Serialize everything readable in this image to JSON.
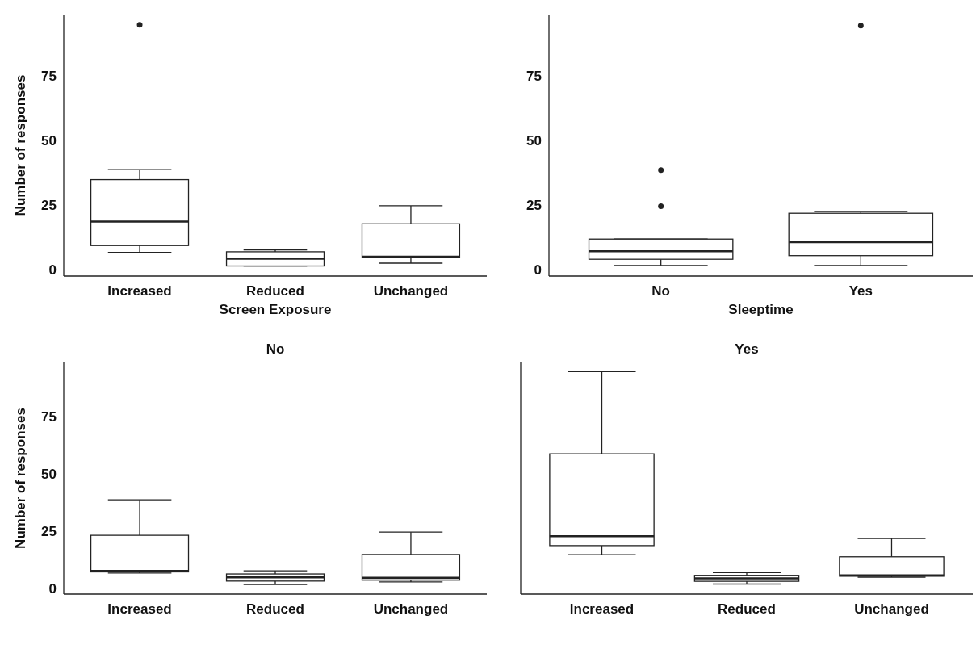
{
  "chart_data": [
    {
      "type": "box",
      "xlabel": "Screen Exposure",
      "ylabel": "Number of responses",
      "categories": [
        "Increased",
        "Reduced",
        "Unchanged"
      ],
      "ylim": [
        -2.6,
        98.6
      ],
      "yticks": [
        0,
        25,
        50,
        75
      ],
      "grid": false,
      "boxes": [
        {
          "low": 6.6,
          "q1": 9.2,
          "median": 18.5,
          "q3": 34.7,
          "high": 38.6,
          "outliers": [
            94.6
          ]
        },
        {
          "low": 1.3,
          "q1": 1.3,
          "median": 4.1,
          "q3": 6.8,
          "high": 7.5
        },
        {
          "low": 2.4,
          "q1": 4.5,
          "median": 4.9,
          "q3": 17.6,
          "high": 24.6
        }
      ]
    },
    {
      "type": "box",
      "xlabel": "Sleeptime",
      "categories": [
        "No",
        "Yes"
      ],
      "ylim": [
        -2.6,
        98.6
      ],
      "yticks": [
        0,
        25,
        50,
        75
      ],
      "grid": false,
      "boxes": [
        {
          "low": 1.5,
          "q1": 3.9,
          "median": 7.0,
          "q3": 11.7,
          "high": 11.7,
          "outliers": [
            24.4,
            38.4
          ]
        },
        {
          "low": 1.5,
          "q1": 5.3,
          "median": 10.5,
          "q3": 21.7,
          "high": 22.4,
          "outliers": [
            94.3
          ]
        }
      ]
    },
    {
      "type": "box",
      "title": "No",
      "ylabel": "Number of responses",
      "categories": [
        "Increased",
        "Reduced",
        "Unchanged"
      ],
      "ylim": [
        -2.6,
        98.6
      ],
      "yticks": [
        0,
        25,
        50,
        75
      ],
      "grid": false,
      "boxes": [
        {
          "low": 6.6,
          "q1": 7.1,
          "median": 7.5,
          "q3": 23.1,
          "high": 38.6
        },
        {
          "low": 1.6,
          "q1": 3.1,
          "median": 4.7,
          "q3": 6.2,
          "high": 7.6
        },
        {
          "low": 2.7,
          "q1": 3.5,
          "median": 4.5,
          "q3": 14.7,
          "high": 24.5
        }
      ]
    },
    {
      "type": "box",
      "title": "Yes",
      "categories": [
        "Increased",
        "Reduced",
        "Unchanged"
      ],
      "ylim": [
        -2.6,
        98.6
      ],
      "yticks": [
        0,
        25,
        50,
        75
      ],
      "grid": false,
      "tick_labels": "x",
      "boxes": [
        {
          "low": 14.6,
          "q1": 18.6,
          "median": 22.7,
          "q3": 58.7,
          "high": 94.6
        },
        {
          "low": 1.8,
          "q1": 3.0,
          "median": 4.3,
          "q3": 5.6,
          "high": 6.8
        },
        {
          "low": 4.8,
          "q1": 5.2,
          "median": 5.6,
          "q3": 13.7,
          "high": 21.7
        }
      ]
    }
  ]
}
